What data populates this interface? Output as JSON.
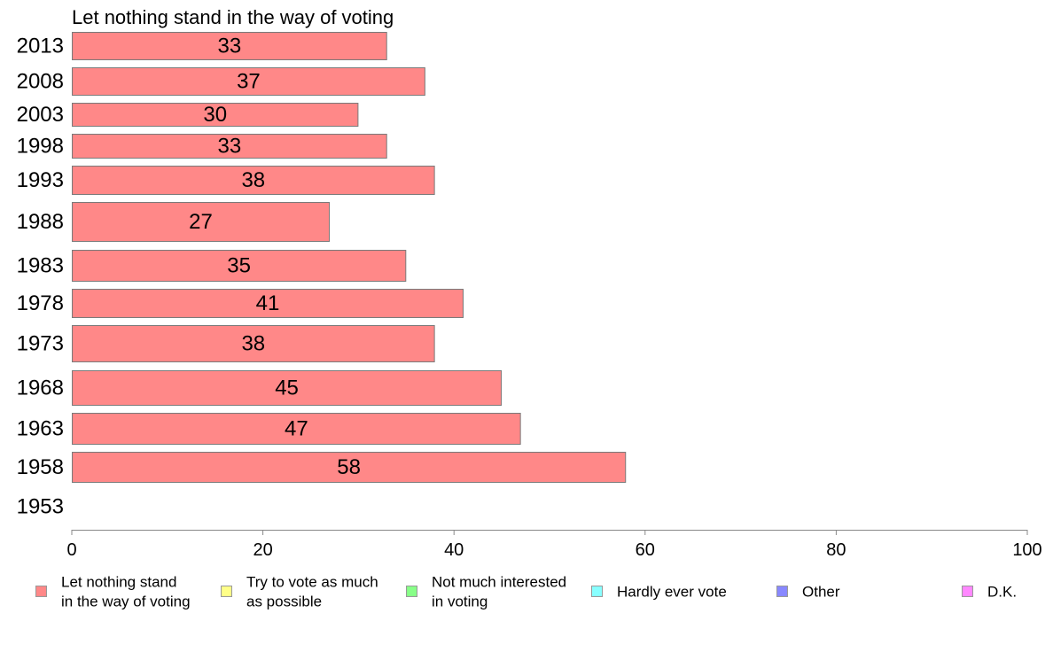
{
  "chart_data": {
    "type": "bar",
    "orientation": "horizontal",
    "title": "Let nothing stand in the way of voting",
    "categories": [
      "2013",
      "2008",
      "2003",
      "1998",
      "1993",
      "1988",
      "1983",
      "1978",
      "1973",
      "1968",
      "1963",
      "1958",
      "1953"
    ],
    "series": [
      {
        "name": "Let nothing stand in the way of voting",
        "values": [
          33,
          37,
          30,
          33,
          38,
          27,
          35,
          41,
          38,
          45,
          47,
          58,
          null
        ],
        "data_labels": [
          "33",
          "37",
          "30",
          "33",
          "38",
          "27",
          "35",
          "41",
          "38",
          "45",
          "47",
          "58",
          ""
        ]
      }
    ],
    "xlim": [
      0,
      100
    ],
    "xticks": [
      "0",
      "20",
      "40",
      "60",
      "80",
      "100"
    ],
    "grid": false,
    "legend": {
      "placement": "bottom",
      "entries": [
        {
          "lines": [
            "Let nothing stand",
            "in the way of voting"
          ],
          "color": "#ff8888"
        },
        {
          "lines": [
            "Try to vote as much",
            "as possible"
          ],
          "color": "#ffff88"
        },
        {
          "lines": [
            "Not much interested",
            "in voting"
          ],
          "color": "#88ff88"
        },
        {
          "lines": [
            "Hardly ever vote"
          ],
          "color": "#88ffff"
        },
        {
          "lines": [
            "Other"
          ],
          "color": "#8888ff"
        },
        {
          "lines": [
            "D.K."
          ],
          "color": "#ff88ff"
        }
      ]
    },
    "colors": {
      "bar": "#ff8888",
      "bar_border": "#7a7a7a",
      "axis": "#888888"
    }
  }
}
